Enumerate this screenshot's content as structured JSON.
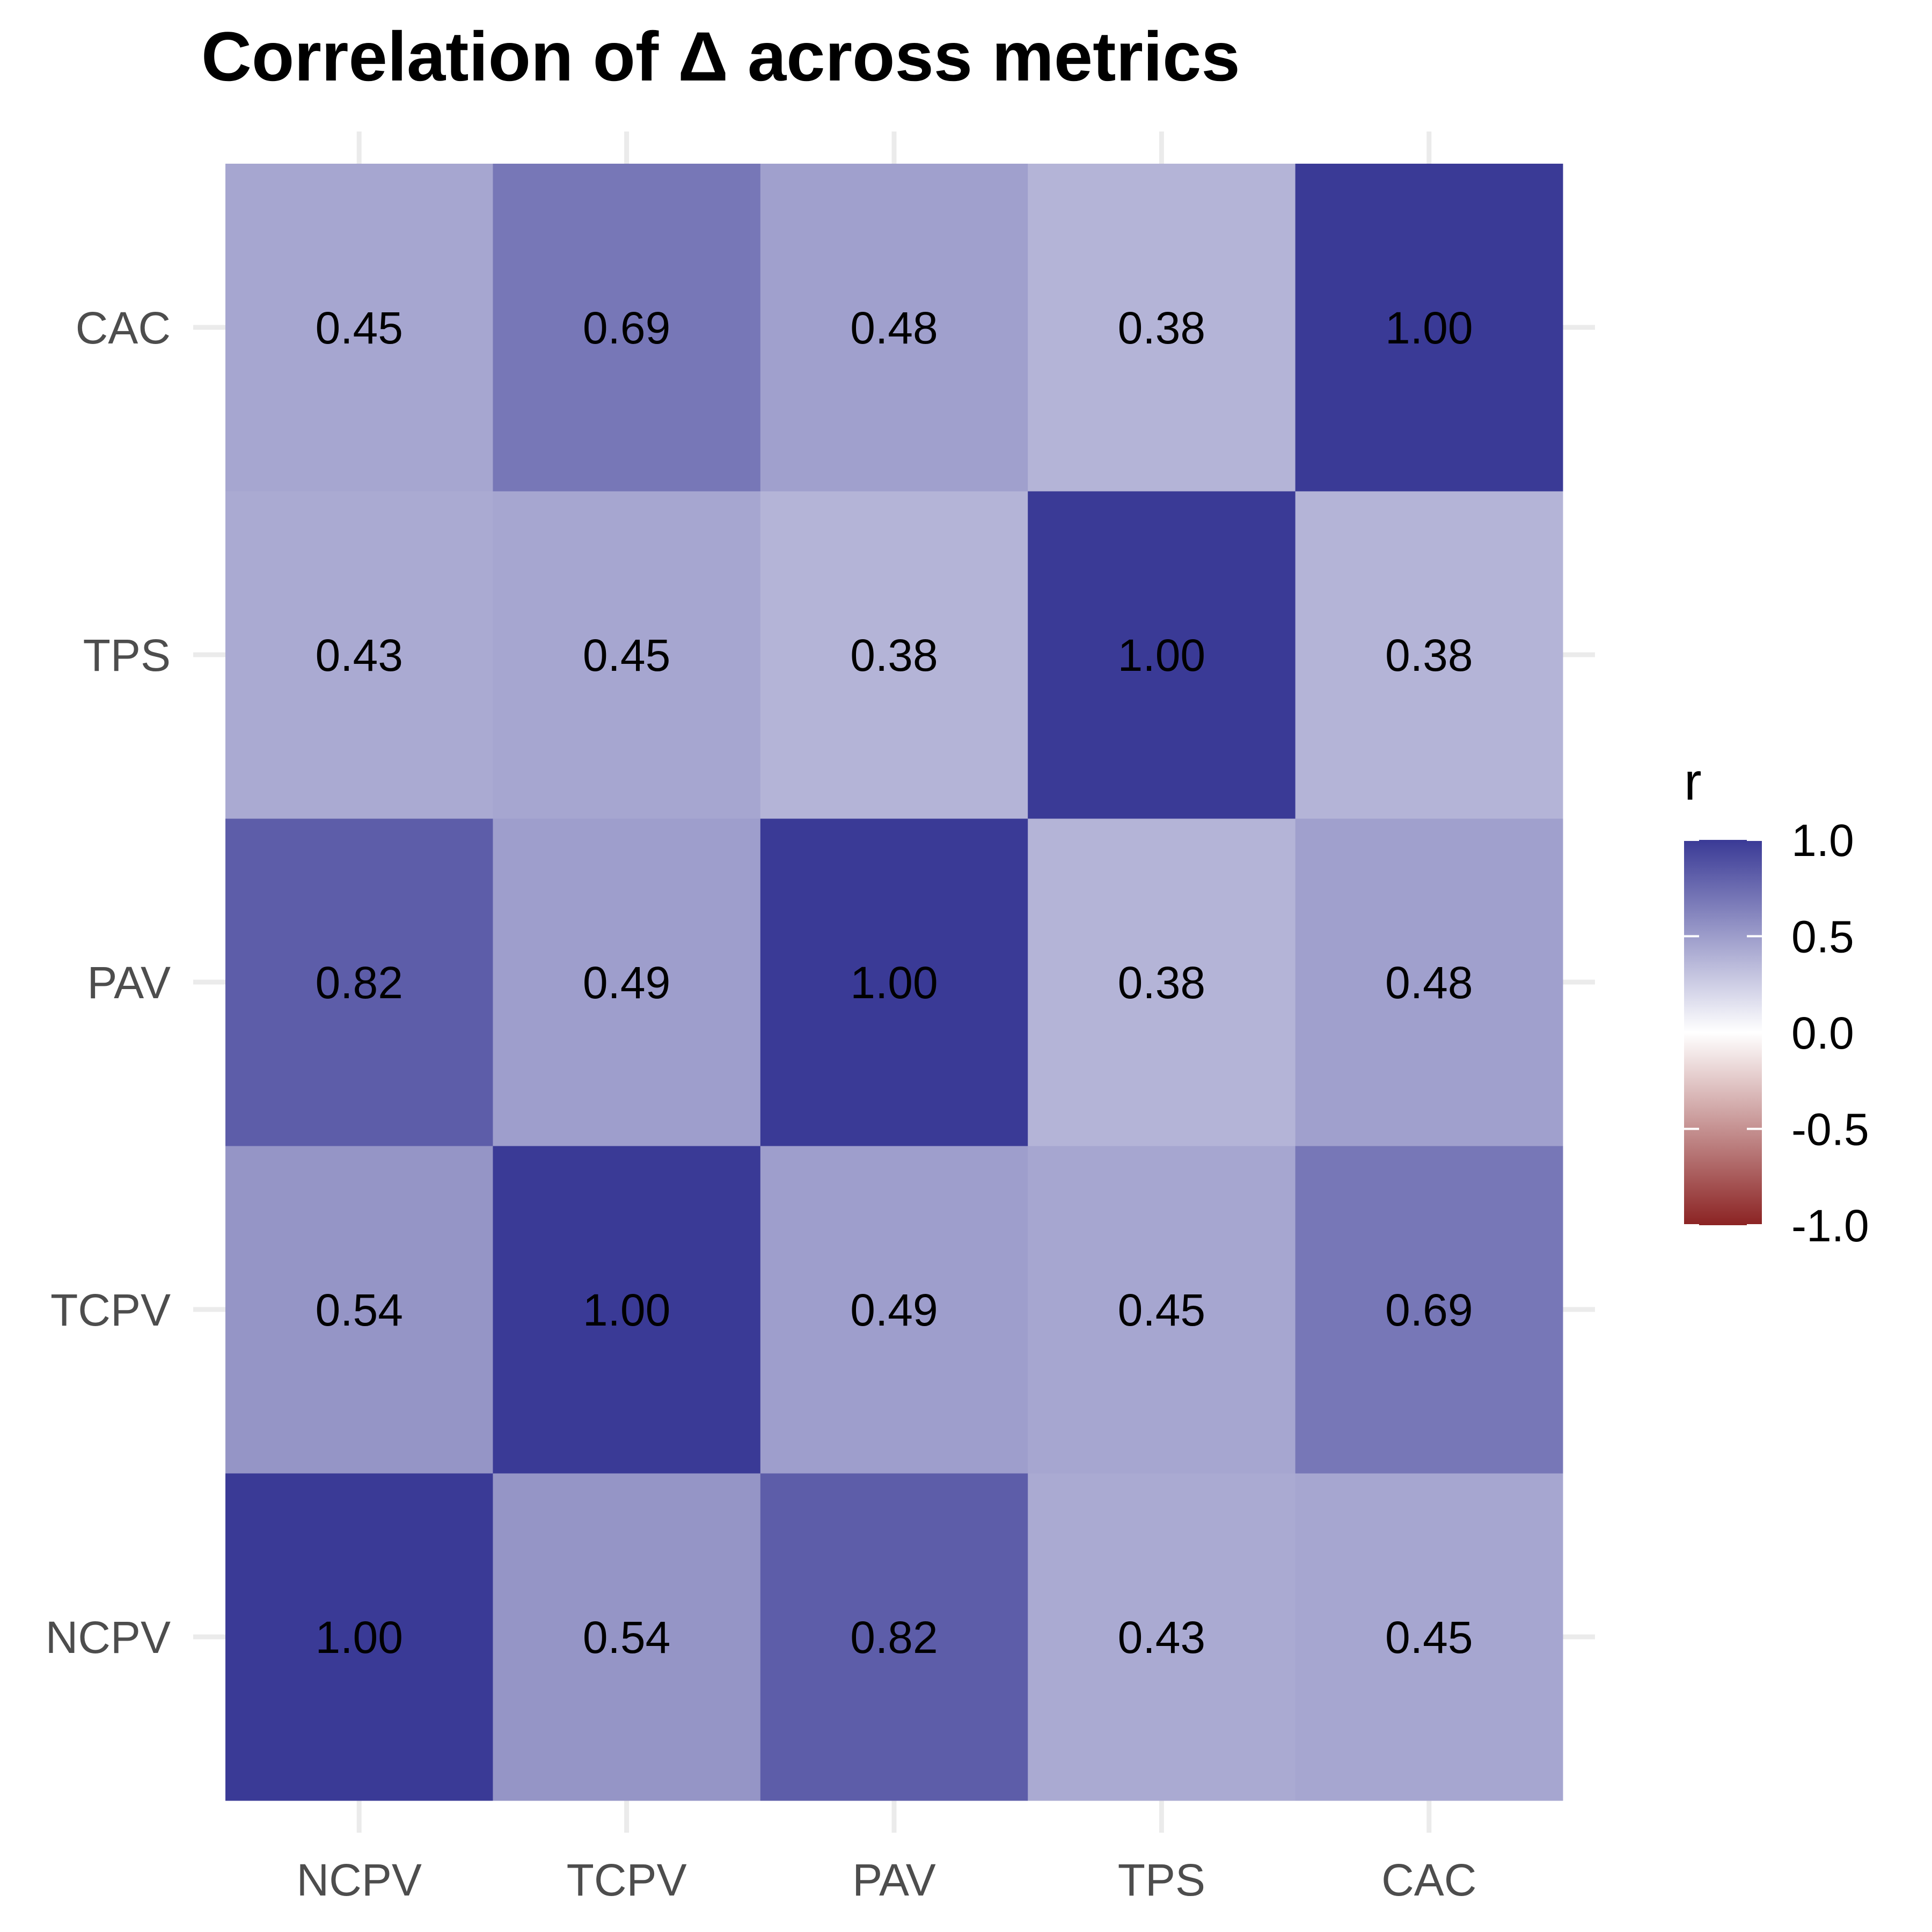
{
  "chart_data": {
    "type": "heatmap",
    "title": "Correlation of Δ across metrics",
    "x_categories": [
      "NCPV",
      "TCPV",
      "PAV",
      "TPS",
      "CAC"
    ],
    "y_categories": [
      "NCPV",
      "TCPV",
      "PAV",
      "TPS",
      "CAC"
    ],
    "values": [
      [
        1.0,
        0.54,
        0.82,
        0.43,
        0.45
      ],
      [
        0.54,
        1.0,
        0.49,
        0.45,
        0.69
      ],
      [
        0.82,
        0.49,
        1.0,
        0.38,
        0.48
      ],
      [
        0.43,
        0.45,
        0.38,
        1.0,
        0.38
      ],
      [
        0.45,
        0.69,
        0.48,
        0.38,
        1.0
      ]
    ],
    "value_labels": [
      [
        "1.00",
        "0.54",
        "0.82",
        "0.43",
        "0.45"
      ],
      [
        "0.54",
        "1.00",
        "0.49",
        "0.45",
        "0.69"
      ],
      [
        "0.82",
        "0.49",
        "1.00",
        "0.38",
        "0.48"
      ],
      [
        "0.43",
        "0.45",
        "0.38",
        "1.00",
        "0.38"
      ],
      [
        "0.45",
        "0.69",
        "0.48",
        "0.38",
        "1.00"
      ]
    ],
    "color_scale": {
      "low": "#8b2323",
      "mid": "#ffffff",
      "high": "#3a3a96",
      "limits": [
        -1,
        1
      ]
    },
    "legend": {
      "title": "r",
      "position": "right",
      "breaks": [
        1.0,
        0.5,
        0.0,
        -0.5,
        -1.0
      ],
      "labels": [
        "1.0",
        "0.5",
        "0.0",
        "-0.5",
        "-1.0"
      ]
    },
    "grid": true,
    "xlabel": "",
    "ylabel": ""
  }
}
